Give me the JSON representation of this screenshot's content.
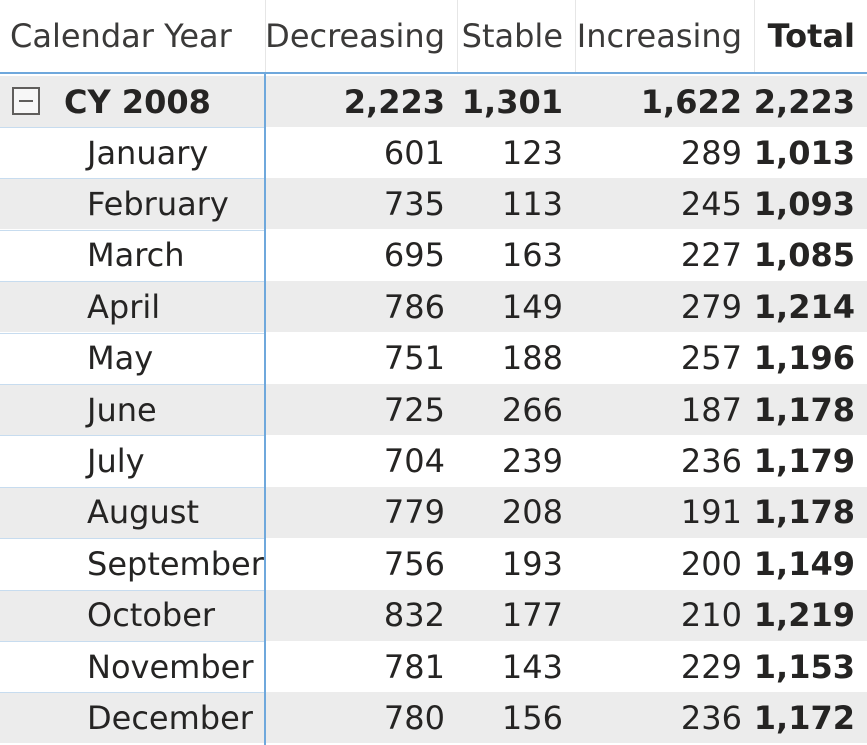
{
  "header": {
    "calendar_year": "Calendar Year",
    "decreasing": "Decreasing",
    "stable": "Stable",
    "increasing": "Increasing",
    "total": "Total"
  },
  "group": {
    "label": "CY 2008",
    "decreasing": "2,223",
    "stable": "1,301",
    "increasing": "1,622",
    "total": "2,223",
    "expand_icon": "collapse-minus-icon"
  },
  "rows": [
    {
      "month": "January",
      "decreasing": "601",
      "stable": "123",
      "increasing": "289",
      "total": "1,013"
    },
    {
      "month": "February",
      "decreasing": "735",
      "stable": "113",
      "increasing": "245",
      "total": "1,093"
    },
    {
      "month": "March",
      "decreasing": "695",
      "stable": "163",
      "increasing": "227",
      "total": "1,085"
    },
    {
      "month": "April",
      "decreasing": "786",
      "stable": "149",
      "increasing": "279",
      "total": "1,214"
    },
    {
      "month": "May",
      "decreasing": "751",
      "stable": "188",
      "increasing": "257",
      "total": "1,196"
    },
    {
      "month": "June",
      "decreasing": "725",
      "stable": "266",
      "increasing": "187",
      "total": "1,178"
    },
    {
      "month": "July",
      "decreasing": "704",
      "stable": "239",
      "increasing": "236",
      "total": "1,179"
    },
    {
      "month": "August",
      "decreasing": "779",
      "stable": "208",
      "increasing": "191",
      "total": "1,178"
    },
    {
      "month": "September",
      "decreasing": "756",
      "stable": "193",
      "increasing": "200",
      "total": "1,149"
    },
    {
      "month": "October",
      "decreasing": "832",
      "stable": "177",
      "increasing": "210",
      "total": "1,219"
    },
    {
      "month": "November",
      "decreasing": "781",
      "stable": "143",
      "increasing": "229",
      "total": "1,153"
    },
    {
      "month": "December",
      "decreasing": "780",
      "stable": "156",
      "increasing": "236",
      "total": "1,172"
    }
  ],
  "colors": {
    "accent_line": "#6fa8dc",
    "row_band": "#ececec",
    "text": "#252423"
  }
}
